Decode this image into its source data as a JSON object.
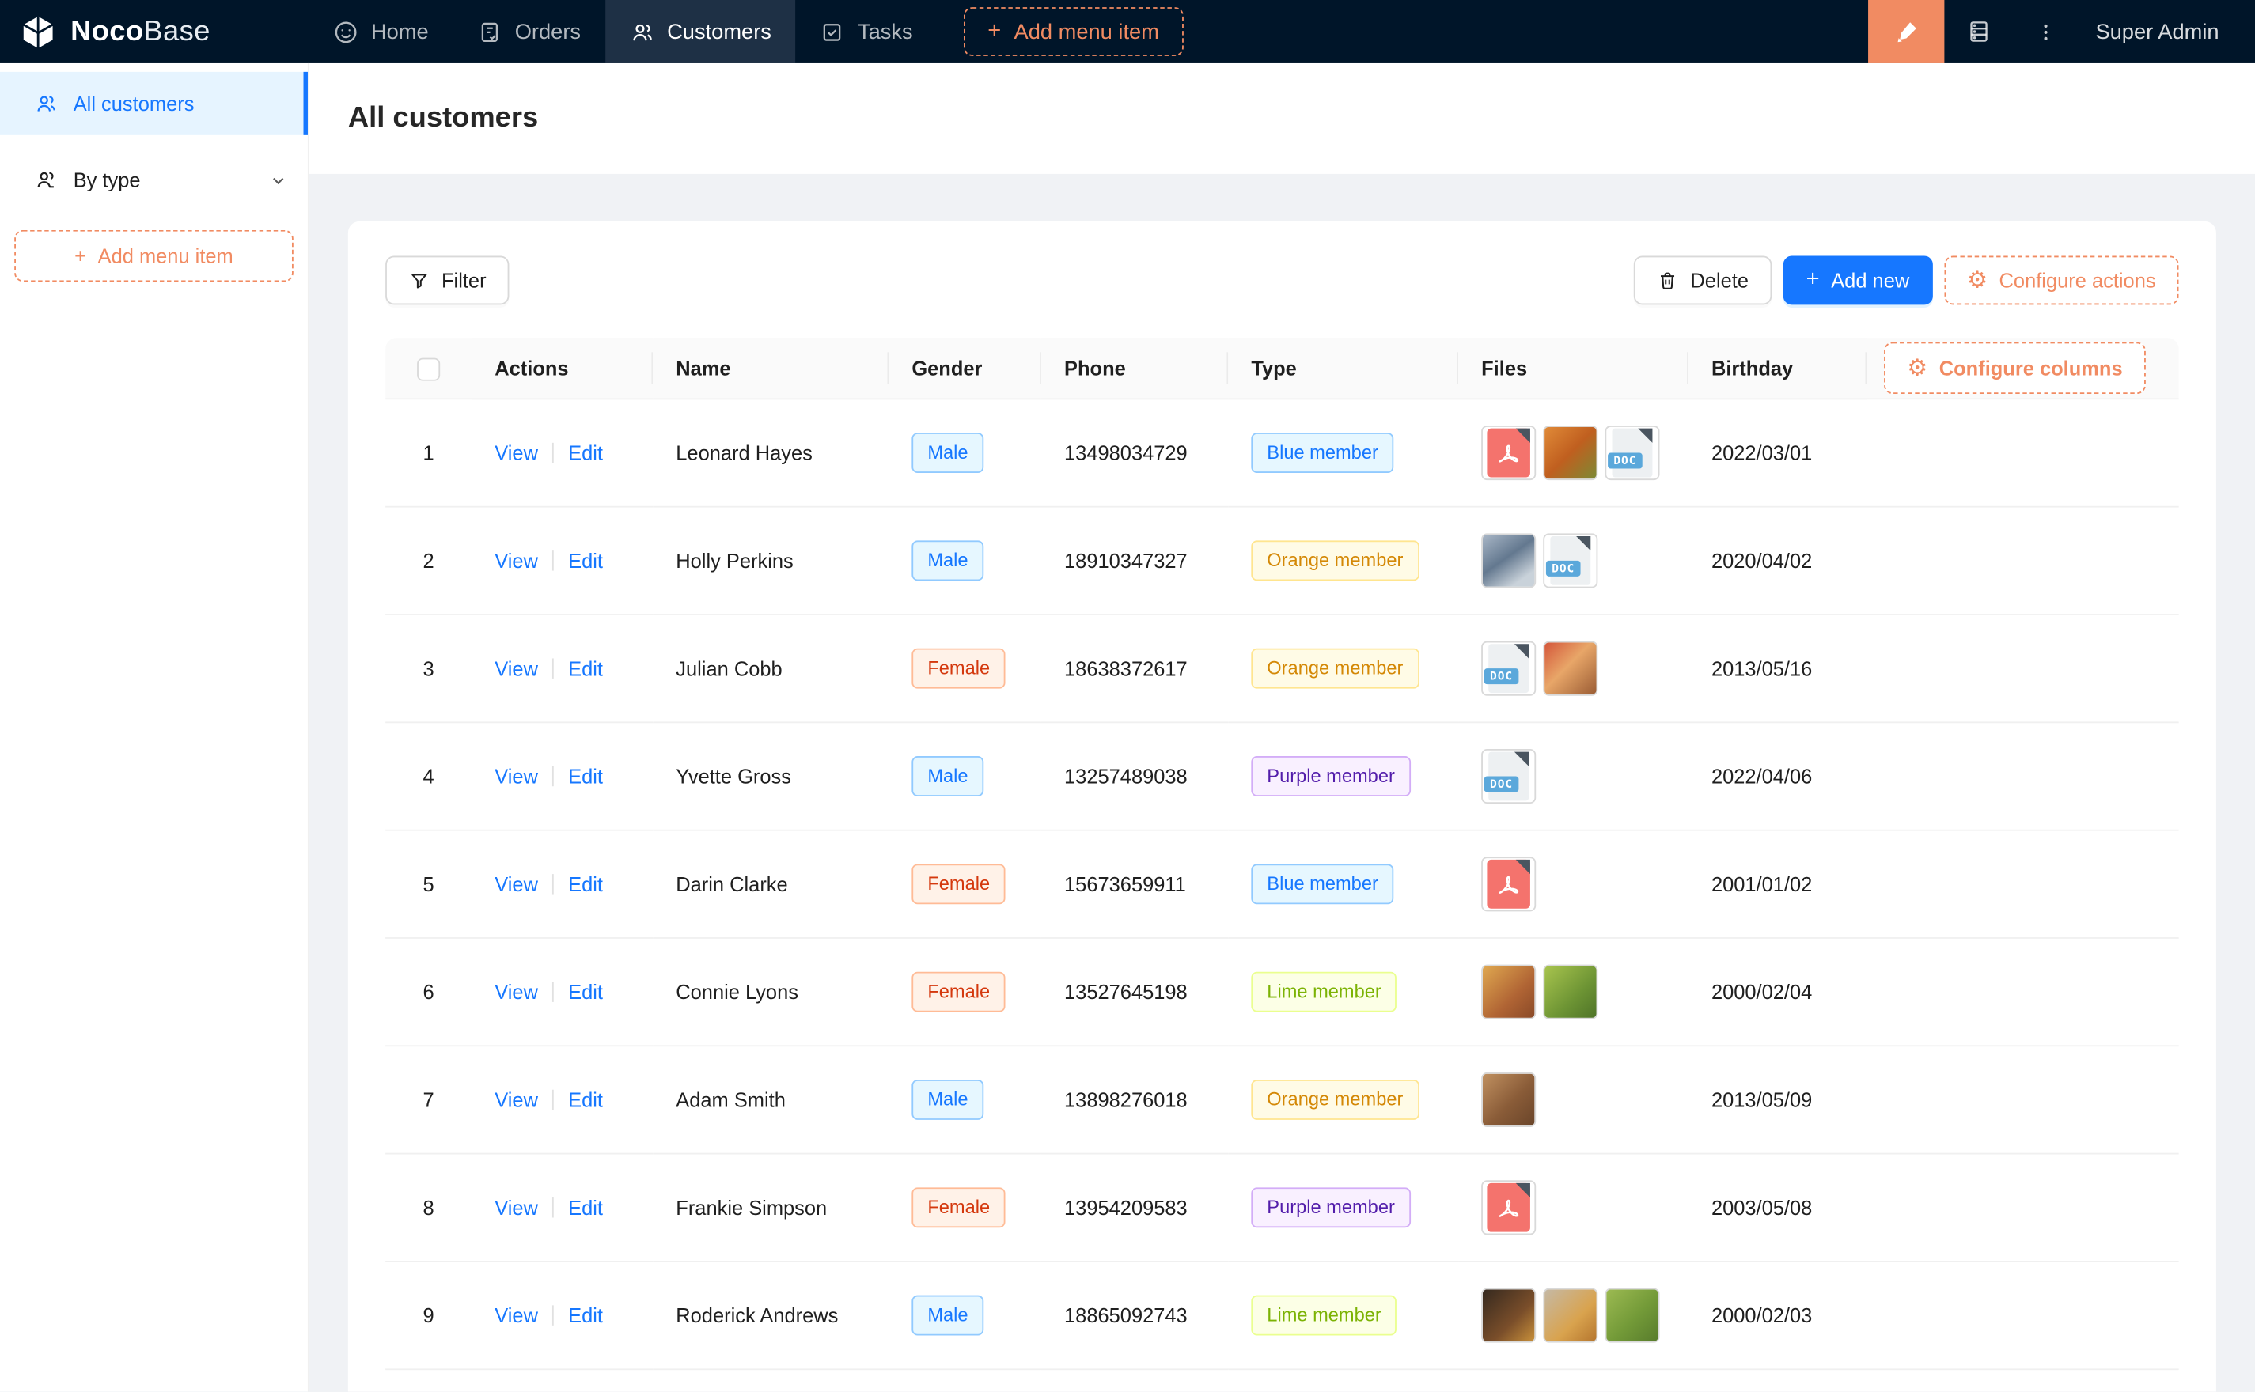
{
  "navbar": {
    "logo": {
      "bold": "Noco",
      "light": "Base"
    },
    "items": [
      {
        "label": "Home",
        "icon": "home-icon"
      },
      {
        "label": "Orders",
        "icon": "orders-icon"
      },
      {
        "label": "Customers",
        "icon": "customers-icon",
        "active": true
      },
      {
        "label": "Tasks",
        "icon": "tasks-icon"
      }
    ],
    "add_menu_item": "Add menu item",
    "user": "Super Admin"
  },
  "sidebar": {
    "items": [
      {
        "label": "All customers",
        "active": true
      },
      {
        "label": "By type"
      }
    ],
    "add_menu_item": "Add menu item"
  },
  "page": {
    "title": "All customers"
  },
  "toolbar": {
    "filter": "Filter",
    "delete": "Delete",
    "add_new": "Add new",
    "configure_actions": "Configure actions"
  },
  "table": {
    "columns": [
      "Actions",
      "Name",
      "Gender",
      "Phone",
      "Type",
      "Files",
      "Birthday"
    ],
    "configure_columns": "Configure columns",
    "row_actions": [
      "View",
      "Edit"
    ],
    "doc_label": "DOC",
    "rows": [
      {
        "index": 1,
        "name": "Leonard Hayes",
        "gender": "Male",
        "gender_color": "blue",
        "phone": "13498034729",
        "type": "Blue member",
        "type_color": "blue",
        "files": [
          "pdf",
          "img:orange-food",
          "doc"
        ],
        "birthday": "2022/03/01"
      },
      {
        "index": 2,
        "name": "Holly Perkins",
        "gender": "Male",
        "gender_color": "blue",
        "phone": "18910347327",
        "type": "Orange member",
        "type_color": "gold",
        "files": [
          "img:blue-crowd",
          "doc"
        ],
        "birthday": "2020/04/02"
      },
      {
        "index": 3,
        "name": "Julian Cobb",
        "gender": "Female",
        "gender_color": "volcano",
        "phone": "18638372617",
        "type": "Orange member",
        "type_color": "gold",
        "files": [
          "doc",
          "img:red-food"
        ],
        "birthday": "2013/05/16"
      },
      {
        "index": 4,
        "name": "Yvette Gross",
        "gender": "Male",
        "gender_color": "blue",
        "phone": "13257489038",
        "type": "Purple member",
        "type_color": "purple",
        "files": [
          "doc"
        ],
        "birthday": "2022/04/06"
      },
      {
        "index": 5,
        "name": "Darin Clarke",
        "gender": "Female",
        "gender_color": "volcano",
        "phone": "15673659911",
        "type": "Blue member",
        "type_color": "blue",
        "files": [
          "pdf"
        ],
        "birthday": "2001/01/02"
      },
      {
        "index": 6,
        "name": "Connie Lyons",
        "gender": "Female",
        "gender_color": "volcano",
        "phone": "13527645198",
        "type": "Lime member",
        "type_color": "lime",
        "files": [
          "img:warm-food",
          "img:green-leaf"
        ],
        "birthday": "2000/02/04"
      },
      {
        "index": 7,
        "name": "Adam Smith",
        "gender": "Male",
        "gender_color": "blue",
        "phone": "13898276018",
        "type": "Orange member",
        "type_color": "gold",
        "files": [
          "img:table-food"
        ],
        "birthday": "2013/05/09"
      },
      {
        "index": 8,
        "name": "Frankie Simpson",
        "gender": "Female",
        "gender_color": "volcano",
        "phone": "13954209583",
        "type": "Purple member",
        "type_color": "purple",
        "files": [
          "pdf"
        ],
        "birthday": "2003/05/08"
      },
      {
        "index": 9,
        "name": "Roderick Andrews",
        "gender": "Male",
        "gender_color": "blue",
        "phone": "18865092743",
        "type": "Lime member",
        "type_color": "lime",
        "files": [
          "img:dark-fruit",
          "img:pale-fruit",
          "img:green-grapes"
        ],
        "birthday": "2000/02/03"
      }
    ]
  },
  "icons": {
    "plus": "+",
    "gear": "⚙",
    "vertical_ellipsis": "⋮"
  },
  "colors": {
    "navbar_bg": "#001529",
    "navbar_active_bg": "#1e3045",
    "accent_orange": "#F18B62",
    "primary_blue": "#1677ff",
    "sidebar_active_bg": "#e6f4ff",
    "page_bg": "#f0f2f5",
    "badge_blue_text": "#1677ff",
    "badge_volcano_text": "#d4380d",
    "badge_gold_text": "#d48806",
    "badge_purple_text": "#531dab",
    "badge_lime_text": "#7cb305",
    "pdf_red": "#F4736D",
    "doc_blue": "#5BA8DB"
  }
}
